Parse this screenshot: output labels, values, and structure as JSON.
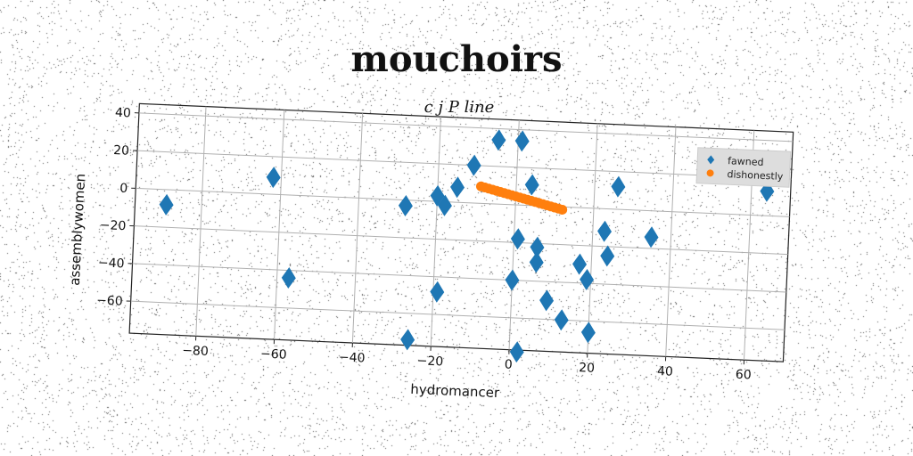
{
  "chart_data": {
    "type": "scatter",
    "title": "mouchoirs",
    "subtitle": "c j P line",
    "xlabel": "hydromancer",
    "ylabel": "assemblywomen",
    "xlim": [
      -97,
      70
    ],
    "ylim": [
      -77,
      45
    ],
    "xticks": [
      -80,
      -60,
      -40,
      -20,
      0,
      20,
      40,
      60
    ],
    "yticks": [
      40,
      20,
      0,
      -20,
      -40,
      -60
    ],
    "grid": true,
    "legend_position": "top-right",
    "series": [
      {
        "name": "fawned",
        "marker": "diamond",
        "color": "#1f77b4",
        "points": [
          [
            -89,
            -8
          ],
          [
            -62,
            9
          ],
          [
            -57,
            -44
          ],
          [
            -28,
            -3
          ],
          [
            -26,
            -74
          ],
          [
            -20,
            3
          ],
          [
            -19,
            -48
          ],
          [
            -18,
            -2
          ],
          [
            -15,
            8
          ],
          [
            -11,
            20
          ],
          [
            -5,
            34
          ],
          [
            1,
            34
          ],
          [
            1,
            -18
          ],
          [
            0,
            -40
          ],
          [
            2,
            -78
          ],
          [
            4,
            11
          ],
          [
            6,
            -22
          ],
          [
            6,
            -30
          ],
          [
            9,
            -50
          ],
          [
            13,
            -60
          ],
          [
            17,
            -30
          ],
          [
            19,
            -38
          ],
          [
            20,
            -66
          ],
          [
            23,
            -12
          ],
          [
            24,
            -25
          ],
          [
            26,
            12
          ],
          [
            35,
            -14
          ],
          [
            64,
            13
          ]
        ]
      },
      {
        "name": "dishonestly",
        "marker": "circle",
        "color": "#ff7f0e",
        "x": [
          -9,
          -8,
          -7,
          -6,
          -5,
          -4,
          -3,
          -2,
          -1,
          0,
          1,
          2,
          3,
          4,
          5,
          6,
          7,
          8,
          9,
          10,
          11,
          12
        ],
        "y": [
          9,
          8.5,
          8,
          7.5,
          7,
          6.5,
          6,
          5.5,
          5,
          4.5,
          4,
          3.5,
          3,
          2.5,
          2,
          1.5,
          1,
          0.5,
          0,
          -0.5,
          -1,
          -1.5
        ]
      }
    ]
  }
}
